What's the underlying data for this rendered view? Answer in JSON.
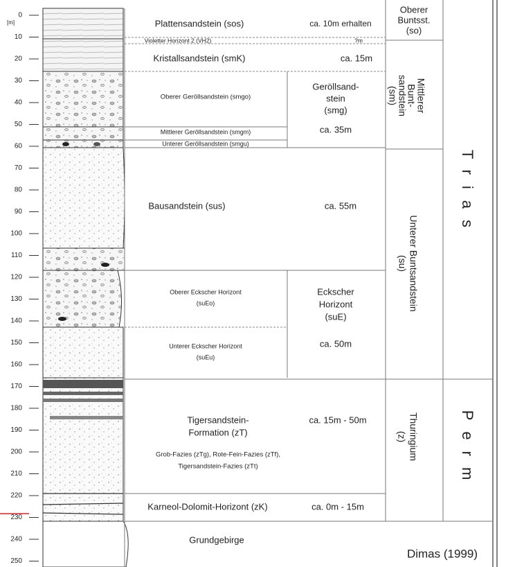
{
  "depth_scale": {
    "unit": "[m]",
    "ticks": [
      0,
      10,
      20,
      30,
      40,
      50,
      60,
      70,
      80,
      90,
      100,
      110,
      120,
      130,
      140,
      150,
      160,
      170,
      180,
      190,
      200,
      210,
      220,
      230,
      240,
      250
    ]
  },
  "formations": [
    {
      "name_lines": [
        "Plattensandstein (sos)"
      ],
      "thickness": "ca. 10m erhalten"
    },
    {
      "name_lines": [
        "Violetter Horizont 2 (VH2)"
      ],
      "thickness": "?m"
    },
    {
      "name_lines": [
        "Kristallsandstein (smK)"
      ],
      "thickness": "ca. 15m"
    },
    {
      "name_lines": [
        "Oberer Geröllsandstein (smgo)"
      ]
    },
    {
      "name_lines": [
        "Mittlerer Geröllsandstein (smgm)"
      ]
    },
    {
      "name_lines": [
        "Unterer Geröllsandstein (smgu)"
      ]
    },
    {
      "name_lines": [
        "Bausandstein (sus)"
      ],
      "thickness": "ca. 55m"
    },
    {
      "name_lines": [
        "Oberer Eckscher Horizont",
        "(suEo)"
      ]
    },
    {
      "name_lines": [
        "Unterer Eckscher Horizont",
        "(suEu)"
      ]
    },
    {
      "name_lines": [
        "Tigersandstein-",
        "Formation (zT)"
      ],
      "thickness": "ca. 15m - 50m",
      "facies_lines": [
        "Grob-Fazies (zTg), Rote-Fein-Fazies (zTf),",
        "Tigersandstein-Fazies (zTt)"
      ]
    },
    {
      "name_lines": [
        "Karneol-Dolomit-Horizont (zK)"
      ],
      "thickness": "ca. 0m - 15m"
    },
    {
      "name_lines": [
        "Grundgebirge"
      ]
    }
  ],
  "members": [
    {
      "name_lines": [
        "Geröllsand-",
        "stein",
        "(smg)"
      ],
      "thickness": "ca. 35m"
    },
    {
      "name_lines": [
        "Eckscher",
        "Horizont",
        "(suE)"
      ],
      "thickness": "ca. 50m"
    }
  ],
  "groups": [
    {
      "name_lines": [
        "Oberer",
        "Buntsst.",
        "(so)"
      ]
    },
    {
      "name_lines": [
        "Mittlerer",
        "Bunt-",
        "sandstein",
        "(sm)"
      ]
    },
    {
      "name_lines": [
        "Unterer Buntsandstein",
        "(su)"
      ]
    },
    {
      "name_lines": [
        "Thuringium",
        "(z)"
      ]
    }
  ],
  "systems": [
    "Trias",
    "Perm"
  ],
  "source": "Dimas (1999)"
}
